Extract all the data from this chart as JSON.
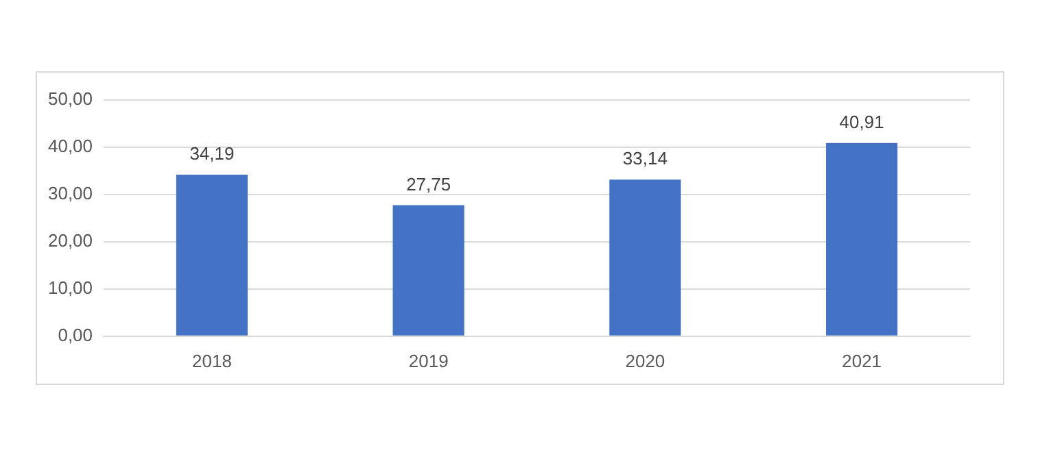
{
  "chart_data": {
    "type": "bar",
    "categories": [
      "2018",
      "2019",
      "2020",
      "2021"
    ],
    "values": [
      34.19,
      27.75,
      33.14,
      40.91
    ],
    "value_labels": [
      "34,19",
      "27,75",
      "33,14",
      "40,91"
    ],
    "color": "#4472c4",
    "ylim": [
      0,
      50
    ],
    "yticks": [
      {
        "value": 0,
        "label": "0,00"
      },
      {
        "value": 10,
        "label": "10,00"
      },
      {
        "value": 20,
        "label": "20,00"
      },
      {
        "value": 30,
        "label": "30,00"
      },
      {
        "value": 40,
        "label": "40,00"
      },
      {
        "value": 50,
        "label": "50,00"
      }
    ],
    "grid": "y"
  }
}
